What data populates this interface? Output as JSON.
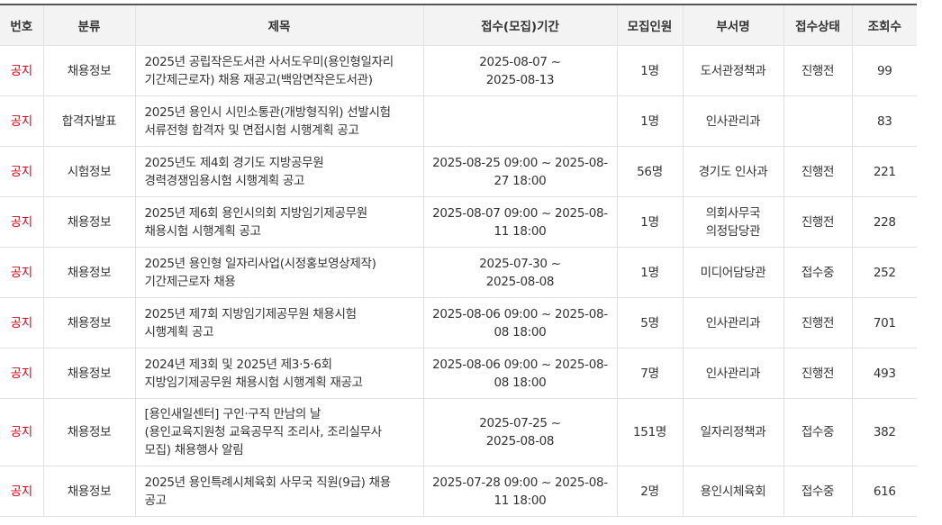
{
  "headers": [
    "번호",
    "분류",
    "제목",
    "접수(모집)기간",
    "모집인원",
    "부서명",
    "접수상태",
    "조회수"
  ],
  "colors": {
    "notice": "#e0001b",
    "header_bg": "#f3f3f3"
  },
  "rows": [
    {
      "no": "공지",
      "category": "채용정보",
      "title": "2025년 공립작은도서관 사서도우미(용인형일자리\n기간제근로자) 채용 재공고(백암면작은도서관)",
      "period": "2025-08-07 ~\n2025-08-13",
      "count": "1명",
      "dept": "도서관정책과",
      "status": "진행전",
      "views": "99"
    },
    {
      "no": "공지",
      "category": "합격자발표",
      "title": "2025년 용인시 시민소통관(개방형직위) 선발시험\n서류전형 합격자 및 면접시험 시행계획 공고",
      "period": "",
      "count": "1명",
      "dept": "인사관리과",
      "status": "",
      "views": "83"
    },
    {
      "no": "공지",
      "category": "시험정보",
      "title": "2025년도 제4회 경기도 지방공무원\n경력경쟁임용시험 시행계획 공고",
      "period": "2025-08-25 09:00 ~ 2025-08-\n27 18:00",
      "count": "56명",
      "dept": "경기도 인사과",
      "status": "진행전",
      "views": "221"
    },
    {
      "no": "공지",
      "category": "채용정보",
      "title": "2025년 제6회 용인시의회 지방임기제공무원\n채용시험 시행계획 공고",
      "period": "2025-08-07 09:00 ~ 2025-08-\n11 18:00",
      "count": "1명",
      "dept": "의회사무국\n의정담당관",
      "status": "진행전",
      "views": "228"
    },
    {
      "no": "공지",
      "category": "채용정보",
      "title": "2025년 용인형 일자리사업(시정홍보영상제작)\n기간제근로자 채용",
      "period": "2025-07-30 ~\n2025-08-08",
      "count": "1명",
      "dept": "미디어담당관",
      "status": "접수중",
      "views": "252"
    },
    {
      "no": "공지",
      "category": "채용정보",
      "title": "2025년 제7회 지방임기제공무원 채용시험\n시행계획 공고",
      "period": "2025-08-06 09:00 ~ 2025-08-\n08 18:00",
      "count": "5명",
      "dept": "인사관리과",
      "status": "진행전",
      "views": "701"
    },
    {
      "no": "공지",
      "category": "채용정보",
      "title": "2024년 제3회 및 2025년 제3·5·6회\n지방임기제공무원 채용시험 시행계획 재공고",
      "period": "2025-08-06 09:00 ~ 2025-08-\n08 18:00",
      "count": "7명",
      "dept": "인사관리과",
      "status": "진행전",
      "views": "493"
    },
    {
      "no": "공지",
      "category": "채용정보",
      "title": "[용인새일센터] 구인·구직 만남의 날\n(용인교육지원청 교육공무직 조리사, 조리실무사\n모집) 채용행사 알림",
      "period": "2025-07-25 ~\n2025-08-08",
      "count": "151명",
      "dept": "일자리정책과",
      "status": "접수중",
      "views": "382"
    },
    {
      "no": "공지",
      "category": "채용정보",
      "title": "2025년 용인특례시체육회 사무국 직원(9급) 채용\n공고",
      "period": "2025-07-28 09:00 ~ 2025-08-\n11 18:00",
      "count": "2명",
      "dept": "용인시체육회",
      "status": "접수중",
      "views": "616"
    }
  ]
}
